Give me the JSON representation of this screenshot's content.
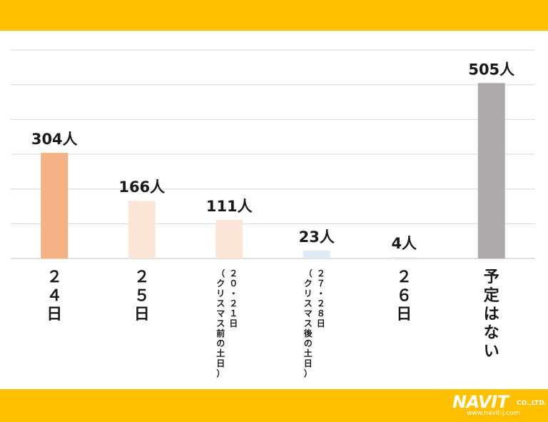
{
  "chart_data": {
    "type": "bar",
    "categories": [
      "２４日",
      "２５日",
      "２０・２１日（クリスマス前の土日）",
      "２７・２８日（クリスマス後の土日）",
      "２６日",
      "予定はない"
    ],
    "values": [
      304,
      166,
      111,
      23,
      4,
      505
    ],
    "value_labels": [
      "304人",
      "166人",
      "111人",
      "23人",
      "4人",
      "505人"
    ],
    "colors": [
      "#F4B183",
      "#FBE5D6",
      "#FBE5D6",
      "#DEEBF7",
      "#DEEBF7",
      "#AEAAAA"
    ],
    "ylim": [
      0,
      600
    ],
    "grid": true,
    "legend": "none"
  },
  "logo": {
    "name": "NAVIT",
    "suffix": "CO.,LTD.",
    "url": "www.navit-j.com"
  }
}
